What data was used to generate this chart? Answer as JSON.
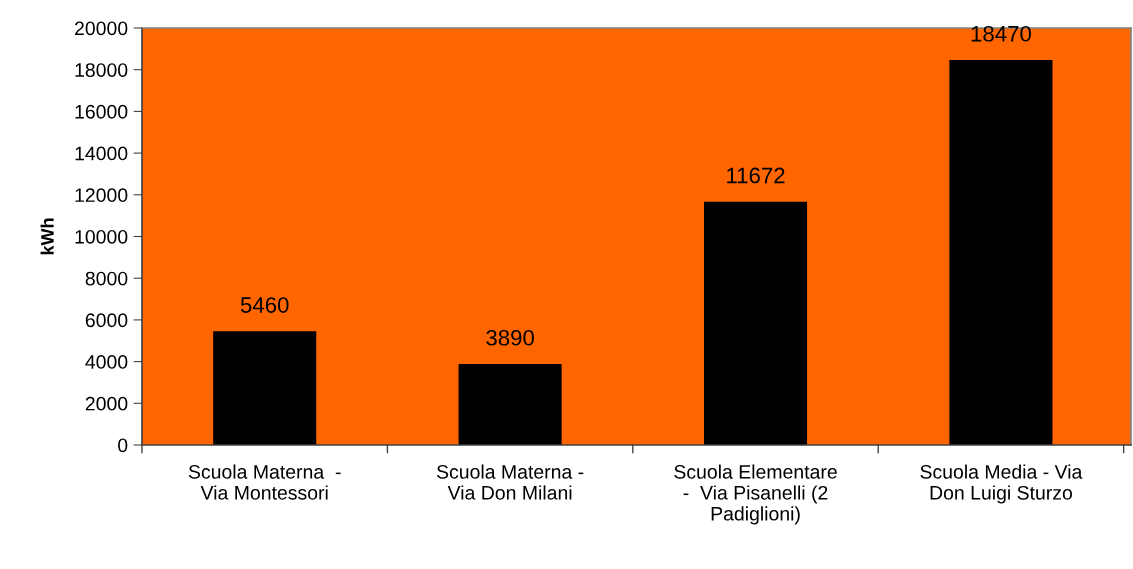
{
  "chart_data": {
    "type": "bar",
    "ylabel": "kWh",
    "categories": [
      "Scuola Materna  -\nVia Montessori",
      "Scuola Materna -\nVia Don Milani",
      "Scuola Elementare\n-  Via Pisanelli (2\nPadiglioni)",
      "Scuola Media - Via\nDon Luigi Sturzo"
    ],
    "values": [
      5460,
      3890,
      11672,
      18470
    ],
    "color": "#000000",
    "ylim": [
      0,
      20000
    ],
    "yticks": [
      0,
      2000,
      4000,
      6000,
      8000,
      10000,
      12000,
      14000,
      16000,
      18000,
      20000
    ],
    "grid": false,
    "data_labels": true
  }
}
